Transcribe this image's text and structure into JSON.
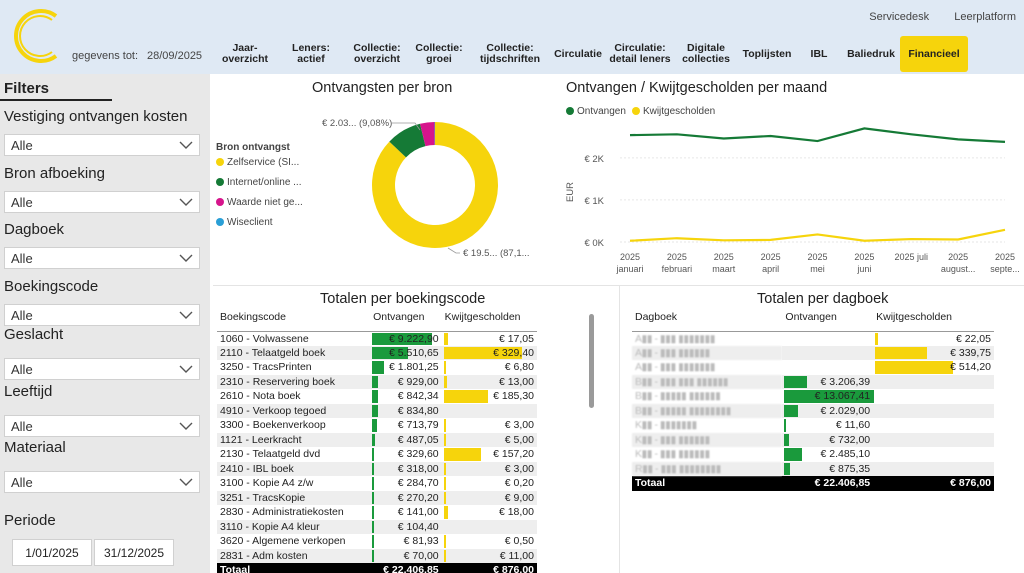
{
  "header": {
    "data_label": "gegevens tot:",
    "data_date": "28/09/2025",
    "links": [
      "Servicedesk",
      "Leerplatform"
    ],
    "tabs": [
      {
        "label": "Jaar-\noverzicht",
        "width": 62
      },
      {
        "label": "Leners: actief",
        "width": 70
      },
      {
        "label": "Collectie:\noverzicht",
        "width": 62
      },
      {
        "label": "Collectie:\ngroei",
        "width": 62
      },
      {
        "label": "Collectie:\ntijdschriften",
        "width": 80
      },
      {
        "label": "Circulatie",
        "width": 56
      },
      {
        "label": "Circulatie:\ndetail leners",
        "width": 68
      },
      {
        "label": "Digitale\ncollecties",
        "width": 64
      },
      {
        "label": "Toplijsten",
        "width": 58
      },
      {
        "label": "IBL",
        "width": 46
      },
      {
        "label": "Baliedruk",
        "width": 58
      },
      {
        "label": "Financieel",
        "width": 68,
        "active": true
      }
    ]
  },
  "colors": {
    "green": "#1a9a3c",
    "dark_green": "#157a36",
    "yellow": "#f6d40c",
    "magenta": "#d6158c",
    "blue": "#2a9fd6"
  },
  "sidebar": {
    "title": "Filters",
    "filters": [
      {
        "label": "Vestiging ontvangen kosten",
        "value": "Alle"
      },
      {
        "label": "Bron afboeking",
        "value": "Alle"
      },
      {
        "label": "Dagboek",
        "value": "Alle"
      },
      {
        "label": "Boekingscode",
        "value": "Alle"
      },
      {
        "label": "Geslacht",
        "value": "Alle"
      },
      {
        "label": "Leeftijd",
        "value": "Alle"
      },
      {
        "label": "Materiaal",
        "value": "Alle"
      }
    ],
    "periode_label": "Periode",
    "date_from": "1/01/2025",
    "date_to": "31/12/2025"
  },
  "donut": {
    "title": "Ontvangsten per bron",
    "legend_title": "Bron ontvangst",
    "legend": [
      {
        "label": "Zelfservice (SI...",
        "color": "#f6d40c"
      },
      {
        "label": "Internet/online ...",
        "color": "#157a36"
      },
      {
        "label": "Waarde niet ge...",
        "color": "#d6158c"
      },
      {
        "label": "Wiseclient",
        "color": "#2a9fd6"
      }
    ],
    "label_top": "€ 2.03... (9,08%)",
    "label_bottom": "€ 19.5... (87,1...",
    "slices": [
      {
        "name": "Zelfservice (SI...",
        "pct": 87.1,
        "color": "#f6d40c"
      },
      {
        "name": "Internet/online ...",
        "pct": 9.08,
        "color": "#157a36"
      },
      {
        "name": "Waarde niet ge...",
        "pct": 3.7,
        "color": "#d6158c"
      },
      {
        "name": "Wiseclient",
        "pct": 0.12,
        "color": "#2a9fd6"
      }
    ]
  },
  "line": {
    "title": "Ontvangen / Kwijtgescholden per maand",
    "legend": [
      {
        "label": "Ontvangen",
        "color": "#157a36"
      },
      {
        "label": "Kwijtgescholden",
        "color": "#f6d40c"
      }
    ],
    "ylabel": "EUR",
    "yticks": [
      "€ 2K",
      "€ 1K",
      "€ 0K"
    ],
    "xticks": [
      [
        "2025",
        "januari"
      ],
      [
        "2025",
        "februari"
      ],
      [
        "2025",
        "maart"
      ],
      [
        "2025",
        "april"
      ],
      [
        "2025",
        "mei"
      ],
      [
        "2025",
        "juni"
      ],
      [
        "2025 juli",
        ""
      ],
      [
        "2025",
        "august..."
      ],
      [
        "2025",
        "septe..."
      ]
    ]
  },
  "chart_data": {
    "type": "line",
    "title": "Ontvangen / Kwijtgescholden per maand",
    "ylabel": "EUR",
    "categories": [
      "2025 januari",
      "2025 februari",
      "2025 maart",
      "2025 april",
      "2025 mei",
      "2025 juni",
      "2025 juli",
      "2025 augustus",
      "2025 september"
    ],
    "ylim": [
      0,
      2500
    ],
    "series": [
      {
        "name": "Ontvangen",
        "values": [
          2540,
          2560,
          2460,
          2520,
          2400,
          2700,
          2560,
          2440,
          2380
        ]
      },
      {
        "name": "Kwijtgescholden",
        "values": [
          30,
          90,
          40,
          50,
          180,
          30,
          70,
          60,
          290
        ]
      }
    ]
  },
  "table1": {
    "title": "Totalen per boekingscode",
    "headers": [
      "Boekingscode",
      "Ontvangen",
      "Kwijtgescholden"
    ],
    "rows": [
      [
        "1060 - Volwassene",
        "€ 9.222,90",
        "€ 17,05",
        9222.9,
        17.05
      ],
      [
        "2110 - Telaatgeld boek",
        "€ 5.510,65",
        "€ 329,40",
        5510.65,
        329.4
      ],
      [
        "3250 - TracsPrinten",
        "€ 1.801,25",
        "€ 6,80",
        1801.25,
        6.8
      ],
      [
        "2310 - Reservering boek",
        "€ 929,00",
        "€ 13,00",
        929.0,
        13.0
      ],
      [
        "2610 - Nota boek",
        "€ 842,34",
        "€ 185,30",
        842.34,
        185.3
      ],
      [
        "4910 - Verkoop tegoed",
        "€ 834,80",
        "",
        834.8,
        0
      ],
      [
        "3300 - Boekenverkoop",
        "€ 713,79",
        "€ 3,00",
        713.79,
        3.0
      ],
      [
        "1121 - Leerkracht",
        "€ 487,05",
        "€ 5,00",
        487.05,
        5.0
      ],
      [
        "2130 - Telaatgeld dvd",
        "€ 329,60",
        "€ 157,20",
        329.6,
        157.2
      ],
      [
        "2410 - IBL boek",
        "€ 318,00",
        "€ 3,00",
        318.0,
        3.0
      ],
      [
        "3100 - Kopie A4 z/w",
        "€ 284,70",
        "€ 0,20",
        284.7,
        0.2
      ],
      [
        "3251 - TracsKopie",
        "€ 270,20",
        "€ 9,00",
        270.2,
        9.0
      ],
      [
        "2830 - Administratiekosten",
        "€ 141,00",
        "€ 18,00",
        141.0,
        18.0
      ],
      [
        "3110 - Kopie A4 kleur",
        "€ 104,40",
        "",
        104.4,
        0
      ],
      [
        "3620 - Algemene verkopen",
        "€ 81,93",
        "€ 0,50",
        81.93,
        0.5
      ],
      [
        "2831 - Adm kosten",
        "€ 70,00",
        "€ 11,00",
        70.0,
        11.0
      ]
    ],
    "total": [
      "Totaal",
      "€ 22.406,85",
      "€ 876,00"
    ]
  },
  "table2": {
    "title": "Totalen per dagboek",
    "headers": [
      "Dagboek",
      "Ontvangen",
      "Kwijtgescholden"
    ],
    "rows": [
      [
        "A▮▮ - ▮▮▮ ▮▮▮▮▮▮▮",
        "",
        "€ 22,05",
        0,
        22.05
      ],
      [
        "A▮▮ - ▮▮▮ ▮▮▮▮▮▮",
        "",
        "€ 339,75",
        0,
        339.75
      ],
      [
        "A▮▮ - ▮▮▮ ▮▮▮▮▮▮▮",
        "",
        "€ 514,20",
        0,
        514.2
      ],
      [
        "B▮▮ - ▮▮▮ ▮▮▮ ▮▮▮▮▮▮",
        "€ 3.206,39",
        "",
        3206.39,
        0
      ],
      [
        "B▮▮ - ▮▮▮▮▮ ▮▮▮▮▮▮",
        "€ 13.067,41",
        "",
        13067.41,
        0
      ],
      [
        "B▮▮ - ▮▮▮▮▮ ▮▮▮▮▮▮▮▮",
        "€ 2.029,00",
        "",
        2029.0,
        0
      ],
      [
        "K▮▮ - ▮▮▮▮▮▮▮",
        "€ 11,60",
        "",
        11.6,
        0
      ],
      [
        "K▮▮ - ▮▮▮ ▮▮▮▮▮▮",
        "€ 732,00",
        "",
        732.0,
        0
      ],
      [
        "K▮▮ - ▮▮▮ ▮▮▮▮▮▮",
        "€ 2.485,10",
        "",
        2485.1,
        0
      ],
      [
        "R▮▮ - ▮▮▮ ▮▮▮▮▮▮▮▮",
        "€ 875,35",
        "",
        875.35,
        0
      ]
    ],
    "total": [
      "Totaal",
      "€ 22.406,85",
      "€ 876,00"
    ]
  }
}
